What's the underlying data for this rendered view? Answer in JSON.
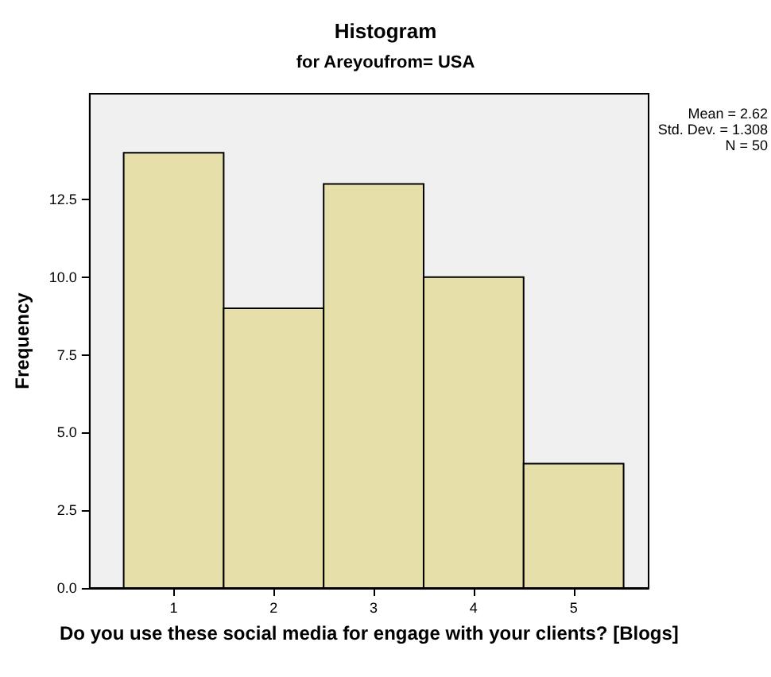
{
  "chart_data": {
    "type": "histogram",
    "title": "Histogram",
    "subtitle": "for Areyoufrom= USA",
    "xlabel": "Do you use these social media for engage with your clients? [Blogs]",
    "ylabel": "Frequency",
    "bins": [
      0.5,
      1.5,
      2.5,
      3.5,
      4.5,
      5.5
    ],
    "values": [
      14,
      9,
      13,
      10,
      4
    ],
    "color": "#e6dfaa",
    "xlim": [
      0.16,
      5.75
    ],
    "xticks": [
      1,
      2,
      3,
      4,
      5
    ],
    "ylim": [
      0,
      15.9
    ],
    "yticks": [
      {
        "value": 0,
        "label": "0.0"
      },
      2.5,
      {
        "value": 5,
        "label": "5.0"
      },
      7.5,
      {
        "value": 10,
        "label": "10.0"
      },
      12.5
    ],
    "annotations": [
      "Mean = 2.62",
      "Std. Dev. = 1.308",
      "N = 50"
    ],
    "grid": false
  }
}
